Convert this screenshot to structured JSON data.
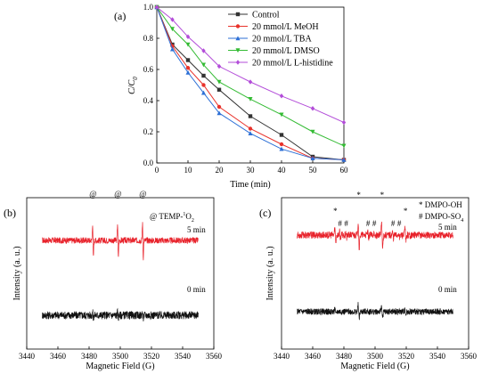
{
  "panel_labels": [
    "(a)",
    "(b)",
    "(c)"
  ],
  "chart_data": [
    {
      "panel": "(a)",
      "type": "line",
      "xlabel": "Time (min)",
      "ylabel": "C/C0",
      "ylabel_main": "C/C",
      "ylabel_sub": "0",
      "xlim": [
        0,
        60
      ],
      "ylim": [
        0,
        1.0
      ],
      "xticks": [
        "0",
        "10",
        "20",
        "30",
        "40",
        "50",
        "60"
      ],
      "yticks": [
        "0.0",
        "0.2",
        "0.4",
        "0.6",
        "0.8",
        "1.0"
      ],
      "x": [
        0,
        5,
        10,
        15,
        20,
        30,
        40,
        50,
        60
      ],
      "legend_position": "top-right",
      "series": [
        {
          "name": "Control",
          "color": "#333333",
          "marker": "square",
          "values": [
            1.0,
            0.76,
            0.66,
            0.56,
            0.47,
            0.3,
            0.18,
            0.04,
            0.02
          ]
        },
        {
          "name": "20 mmol/L MeOH",
          "color": "#e8322b",
          "marker": "circle",
          "values": [
            1.0,
            0.75,
            0.61,
            0.5,
            0.36,
            0.22,
            0.12,
            0.03,
            0.02
          ]
        },
        {
          "name": "20 mmol/L TBA",
          "color": "#2c6fd6",
          "marker": "triangle-up",
          "values": [
            1.0,
            0.73,
            0.58,
            0.45,
            0.32,
            0.19,
            0.09,
            0.03,
            0.02
          ]
        },
        {
          "name": "20 mmol/L DMSO",
          "color": "#33bb33",
          "marker": "triangle-down",
          "values": [
            1.0,
            0.86,
            0.76,
            0.63,
            0.52,
            0.41,
            0.31,
            0.2,
            0.11
          ]
        },
        {
          "name": "20 mmol/L L-histidine",
          "color": "#b34dd9",
          "marker": "diamond",
          "values": [
            1.0,
            0.92,
            0.81,
            0.72,
            0.62,
            0.52,
            0.43,
            0.35,
            0.26
          ]
        }
      ]
    },
    {
      "panel": "(b)",
      "type": "line",
      "xlabel": "Magnetic Field (G)",
      "ylabel": "Intensity (a. u.)",
      "xlim": [
        3440,
        3560
      ],
      "xticks": [
        "3440",
        "3460",
        "3480",
        "3500",
        "3520",
        "3540",
        "3560"
      ],
      "legend_position": "top-right",
      "legend_label": "@ TEMP-",
      "legend_sup": "1",
      "legend_tail": "O",
      "legend_sub": "2",
      "peak_marker": "@",
      "peak_centers": [
        3482.5,
        3498.5,
        3514.5
      ],
      "series": [
        {
          "name": "5 min",
          "color": "#e8222b",
          "range": [
            3450,
            3550
          ],
          "peak_amplitude": 1.0
        },
        {
          "name": "0 min",
          "color": "#111111",
          "range": [
            3450,
            3550
          ],
          "peak_amplitude": 0.18
        }
      ]
    },
    {
      "panel": "(c)",
      "type": "line",
      "xlabel": "Magnetic Field (G)",
      "ylabel": "Intensity (a. u.)",
      "xlim": [
        3440,
        3560
      ],
      "xticks": [
        "3440",
        "3460",
        "3480",
        "3500",
        "3520",
        "3540",
        "3560"
      ],
      "legend_position": "top-right",
      "legend_oh": "* DMPO-OH",
      "legend_so4": "# DMPO-SO",
      "legend_so4_sub": "4",
      "star_symbol": "*",
      "hash_symbol": "#",
      "oh_centers": [
        3474.5,
        3489.5,
        3504.5,
        3519.5
      ],
      "oh_relative": [
        1,
        2,
        2,
        1
      ],
      "so4_centers": [
        3477.5,
        3481.5,
        3495.5,
        3499.5,
        3511.5,
        3515.5
      ],
      "series": [
        {
          "name": "5 min",
          "color": "#e8222b",
          "range": [
            3450,
            3550
          ],
          "peak_amplitude": 0.9
        },
        {
          "name": "0 min",
          "color": "#111111",
          "range": [
            3450,
            3550
          ],
          "peak_amplitude": 0.45
        }
      ]
    }
  ]
}
